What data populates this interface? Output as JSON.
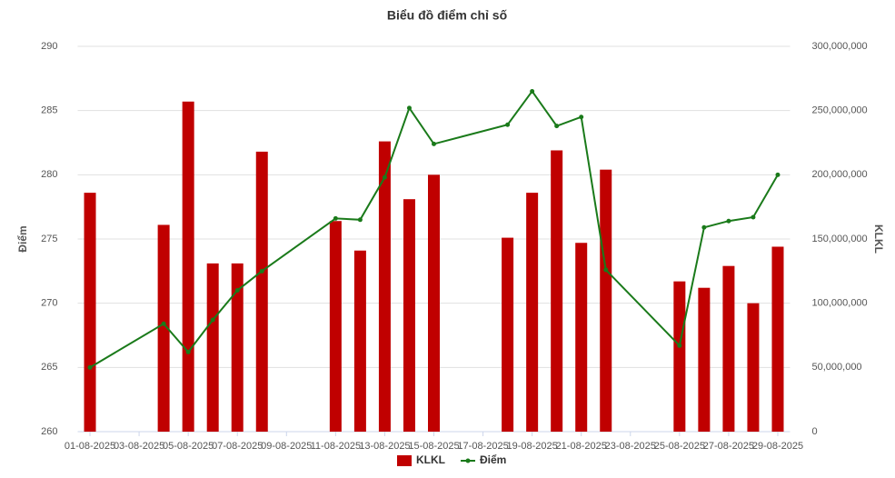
{
  "chart_data": {
    "type": "bar_line",
    "title": "Biểu đồ điểm chỉ số",
    "categories": [
      "01-08-2025",
      null,
      "03-08-2025",
      null,
      "05-08-2025",
      null,
      "07-08-2025",
      null,
      "09-08-2025",
      null,
      "11-08-2025",
      null,
      "13-08-2025",
      null,
      "15-08-2025",
      null,
      "17-08-2025",
      null,
      "19-08-2025",
      null,
      "21-08-2025",
      null,
      "23-08-2025",
      null,
      "25-08-2025",
      null,
      "27-08-2025",
      null,
      "29-08-2025"
    ],
    "y_label": "Điểm",
    "y2_label": "KLKL",
    "ylim": [
      260,
      290
    ],
    "yticks": [
      260,
      265,
      270,
      275,
      280,
      285,
      290
    ],
    "y2lim": [
      0,
      300000000
    ],
    "y2ticks": [
      0,
      {
        "value": 50000000,
        "label": "50,000,000"
      },
      {
        "value": 100000000,
        "label": "100,000,000"
      },
      {
        "value": 150000000,
        "label": "150,000,000"
      },
      {
        "value": 200000000,
        "label": "200,000,000"
      },
      {
        "value": 250000000,
        "label": "250,000,000"
      },
      {
        "value": 300000000,
        "label": "300,000,000"
      }
    ],
    "grid": true,
    "span_gaps": true,
    "legend": "bottom",
    "series": [
      {
        "name": "KLKL",
        "type": "bar",
        "axis": "y2",
        "color": "#c00000",
        "values": [
          186000000,
          null,
          null,
          161000000,
          257000000,
          131000000,
          131000000,
          218000000,
          null,
          null,
          164000000,
          141000000,
          226000000,
          181000000,
          200000000,
          null,
          null,
          151000000,
          186000000,
          219000000,
          147000000,
          204000000,
          null,
          null,
          117000000,
          112000000,
          129000000,
          100000000,
          144000000
        ]
      },
      {
        "name": "Điểm",
        "type": "line",
        "axis": "y",
        "color": "#1a7a1a",
        "values": [
          265.0,
          null,
          null,
          268.4,
          266.2,
          268.7,
          271.0,
          272.5,
          null,
          null,
          276.6,
          276.5,
          279.8,
          285.2,
          282.4,
          null,
          null,
          283.9,
          286.5,
          283.8,
          284.5,
          272.6,
          null,
          null,
          266.7,
          275.9,
          276.4,
          276.7,
          280.0
        ]
      }
    ]
  }
}
